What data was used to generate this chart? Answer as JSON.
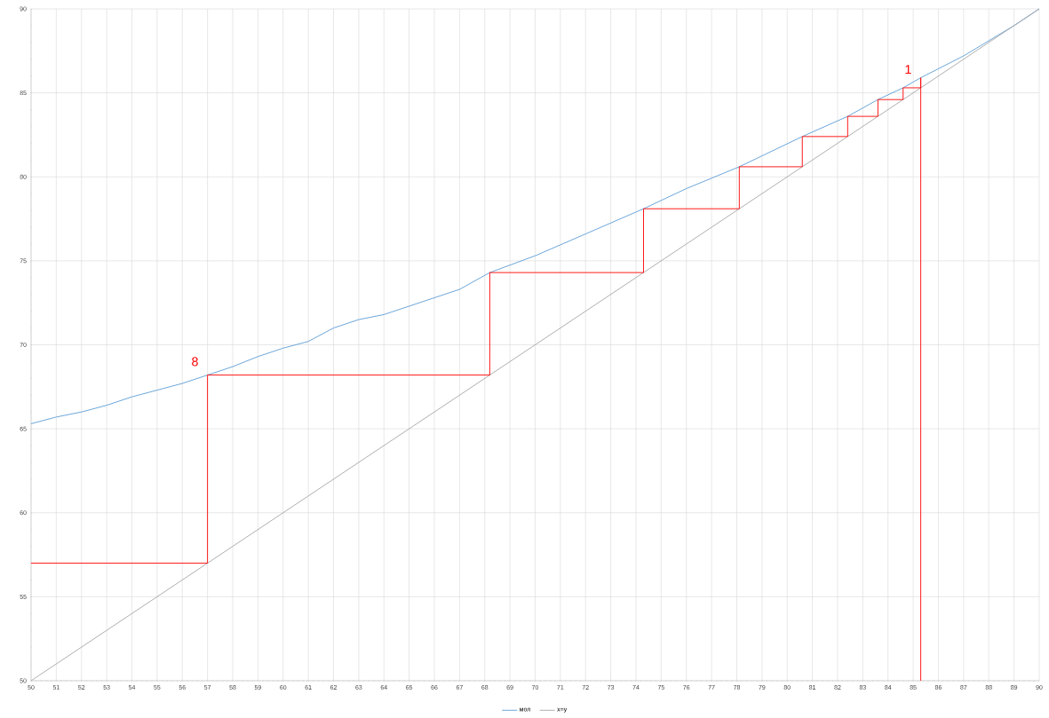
{
  "chart_data": {
    "type": "line",
    "xlim": [
      50,
      90
    ],
    "ylim": [
      50,
      90
    ],
    "xticks": [
      50,
      51,
      52,
      53,
      54,
      55,
      56,
      57,
      58,
      59,
      60,
      61,
      62,
      63,
      64,
      65,
      66,
      67,
      68,
      69,
      70,
      71,
      72,
      73,
      74,
      75,
      76,
      77,
      78,
      79,
      80,
      81,
      82,
      83,
      84,
      85,
      86,
      87,
      88,
      89,
      90
    ],
    "yticks": [
      50,
      55,
      60,
      65,
      70,
      75,
      80,
      85,
      90
    ],
    "grid": true,
    "legend": "bottom",
    "annotations": [
      "8",
      "1"
    ],
    "series": [
      {
        "name": "мол",
        "color": "#5b9bd5",
        "x": [
          50,
          51,
          52,
          53,
          54,
          55,
          56,
          57,
          58,
          59,
          60,
          61,
          62,
          63,
          64,
          65,
          66,
          67,
          68.2,
          70,
          72,
          74.3,
          76,
          78.1,
          80.6,
          82.4,
          83.6,
          84.6,
          85.3,
          87,
          89,
          90
        ],
        "values": [
          65.3,
          65.7,
          66.0,
          66.4,
          66.9,
          67.3,
          67.7,
          68.2,
          68.7,
          69.3,
          69.8,
          70.2,
          71.0,
          71.5,
          71.8,
          72.3,
          72.8,
          73.3,
          74.3,
          75.3,
          76.6,
          78.1,
          79.3,
          80.6,
          82.4,
          83.6,
          84.6,
          85.3,
          85.9,
          87.2,
          89.0,
          90.0
        ]
      },
      {
        "name": "x=y",
        "color": "#a5a5a5",
        "x": [
          50,
          90
        ],
        "values": [
          50,
          90
        ]
      },
      {
        "color": "#ff0000",
        "x": [
          50,
          57,
          57,
          68.2,
          68.2,
          74.3,
          74.3,
          78.1,
          78.1,
          80.6,
          80.6,
          82.4,
          82.4,
          83.6,
          83.6,
          84.6,
          84.6,
          85.3,
          85.3,
          85.3
        ],
        "values": [
          57,
          57,
          68.2,
          68.2,
          74.3,
          74.3,
          78.1,
          78.1,
          80.6,
          80.6,
          82.4,
          82.4,
          83.6,
          83.6,
          84.6,
          84.6,
          85.3,
          85.3,
          85.9,
          50
        ]
      }
    ]
  }
}
